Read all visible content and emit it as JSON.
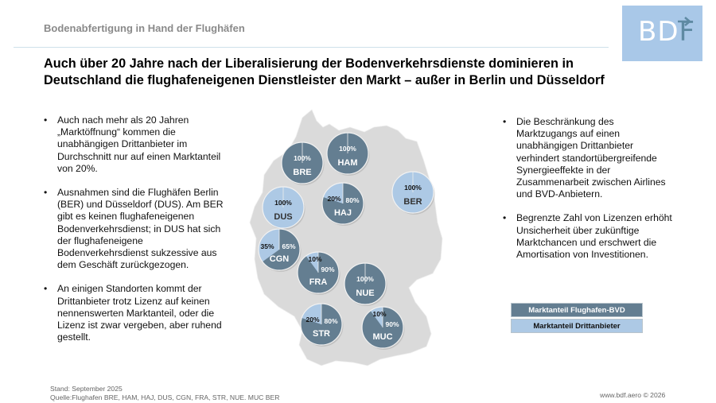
{
  "header": {
    "section_title": "Bodenabfertigung in Hand der Flughäfen",
    "logo_text": "BDF",
    "logo_bd": "BD",
    "logo_f": "F",
    "headline_line1": "Auch über 20 Jahre nach der Liberalisierung der Bodenverkehrsdienste dominieren in",
    "headline_line2": "Deutschland die flughafeneigenen Dienstleister den Markt – außer in Berlin und Düsseldorf"
  },
  "left_bullets": [
    "Auch nach mehr als 20 Jahren „Marktöffnung“ kommen die unabhängigen Drittanbieter im Durchschnitt nur auf einen Marktanteil von 20%.",
    "Ausnahmen sind die Flughäfen Berlin (BER) und Düsseldorf (DUS). Am BER gibt es keinen flughafeneigenen Bodenverkehrsdienst; in DUS hat sich der flughafeneigene Bodenverkehrsdienst sukzessive aus dem Geschäft zurückgezogen.",
    "An einigen Standorten kommt der Drittanbieter trotz Lizenz auf keinen nennenswerten Marktanteil, oder die Lizenz ist zwar vergeben, aber ruhend gestellt."
  ],
  "right_bullets": [
    "Die Beschränkung des Marktzugangs auf einen unabhängigen Drittanbieter verhindert standortübergreifende Synergieeffekte in der Zusammenarbeit zwischen Airlines und BVD-Anbietern.",
    "Begrenzte Zahl von Lizenzen erhöht Unsicherheit über zukünftige Marktchancen und erschwert die Amortisation von Investitionen."
  ],
  "legend": {
    "airport_bvd": "Marktanteil Flughafen-BVD",
    "third_party": "Marktanteil Drittanbieter"
  },
  "colors": {
    "airport_bvd": "#647e91",
    "third_party": "#adc9e5",
    "map": "#dadada",
    "logo_bg": "#a9c8e8"
  },
  "footer": {
    "stand": "Stand: September 2025",
    "quelle": "Quelle:Flughafen BRE, HAM, HAJ, DUS, CGN, FRA, STR, NUE. MUC BER",
    "copyright": "www.bdf.aero © 2026"
  },
  "chart_data": {
    "type": "pie",
    "title": "Marktanteile Bodenverkehrsdienste an deutschen Flughäfen",
    "series_names": [
      "Marktanteil Flughafen-BVD",
      "Marktanteil Drittanbieter"
    ],
    "airports": [
      {
        "code": "BRE",
        "airport_bvd": 100,
        "third_party": 0,
        "label_airport": "100%",
        "label_third": ""
      },
      {
        "code": "HAM",
        "airport_bvd": 100,
        "third_party": 0,
        "label_airport": "100%",
        "label_third": ""
      },
      {
        "code": "BER",
        "airport_bvd": 0,
        "third_party": 100,
        "label_airport": "",
        "label_third": "100%"
      },
      {
        "code": "DUS",
        "airport_bvd": 0,
        "third_party": 100,
        "label_airport": "",
        "label_third": "100%"
      },
      {
        "code": "HAJ",
        "airport_bvd": 80,
        "third_party": 20,
        "label_airport": "80%",
        "label_third": "20%"
      },
      {
        "code": "CGN",
        "airport_bvd": 65,
        "third_party": 35,
        "label_airport": "65%",
        "label_third": "35%"
      },
      {
        "code": "FRA",
        "airport_bvd": 90,
        "third_party": 10,
        "label_airport": "90%",
        "label_third": "10%"
      },
      {
        "code": "NUE",
        "airport_bvd": 100,
        "third_party": 0,
        "label_airport": "100%",
        "label_third": ""
      },
      {
        "code": "STR",
        "airport_bvd": 80,
        "third_party": 20,
        "label_airport": "80%",
        "label_third": "20%"
      },
      {
        "code": "MUC",
        "airport_bvd": 90,
        "third_party": 10,
        "label_airport": "90%",
        "label_third": "10%"
      }
    ]
  }
}
